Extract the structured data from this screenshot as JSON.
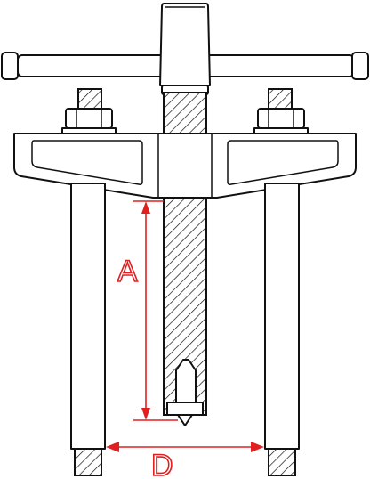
{
  "dimensions": {
    "a_label": "A",
    "d_label": "D"
  },
  "colors": {
    "outline": "#111111",
    "dimension": "#e02020",
    "background": "#ffffff"
  }
}
